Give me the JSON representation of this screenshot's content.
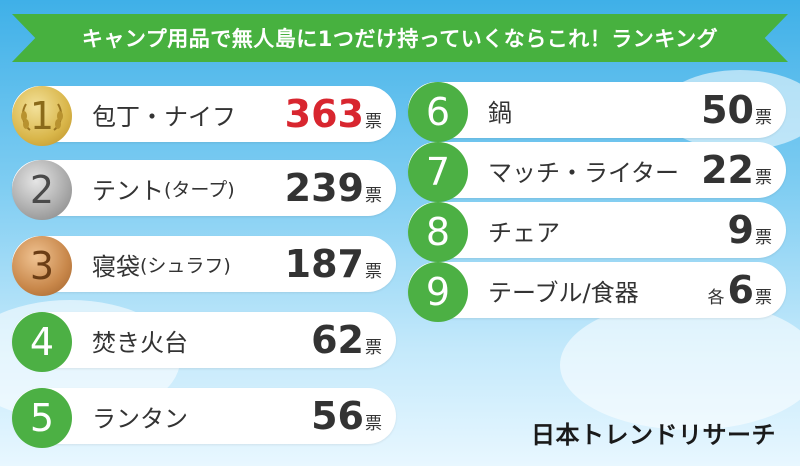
{
  "title": "キャンプ用品で無人島に1つだけ持っていくならこれ！ランキング",
  "unit": "票",
  "rankings": [
    {
      "rank": "1",
      "name": "包丁・ナイフ",
      "sub": "",
      "votes": "363",
      "prefix": ""
    },
    {
      "rank": "2",
      "name": "テント",
      "sub": "(タープ)",
      "votes": "239",
      "prefix": ""
    },
    {
      "rank": "3",
      "name": "寝袋",
      "sub": "(シュラフ)",
      "votes": "187",
      "prefix": ""
    },
    {
      "rank": "4",
      "name": "焚き火台",
      "sub": "",
      "votes": "62",
      "prefix": ""
    },
    {
      "rank": "5",
      "name": "ランタン",
      "sub": "",
      "votes": "56",
      "prefix": ""
    },
    {
      "rank": "6",
      "name": "鍋",
      "sub": "",
      "votes": "50",
      "prefix": ""
    },
    {
      "rank": "7",
      "name": "マッチ・ライター",
      "sub": "",
      "votes": "22",
      "prefix": ""
    },
    {
      "rank": "8",
      "name": "チェア",
      "sub": "",
      "votes": "9",
      "prefix": ""
    },
    {
      "rank": "9",
      "name": "テーブル/食器",
      "sub": "",
      "votes": "6",
      "prefix": "各"
    }
  ],
  "logo": "日本トレンドリサーチ",
  "colors": {
    "banner": "#47b13f",
    "badge": "#4cb044",
    "top_votes": "#d8262f"
  }
}
